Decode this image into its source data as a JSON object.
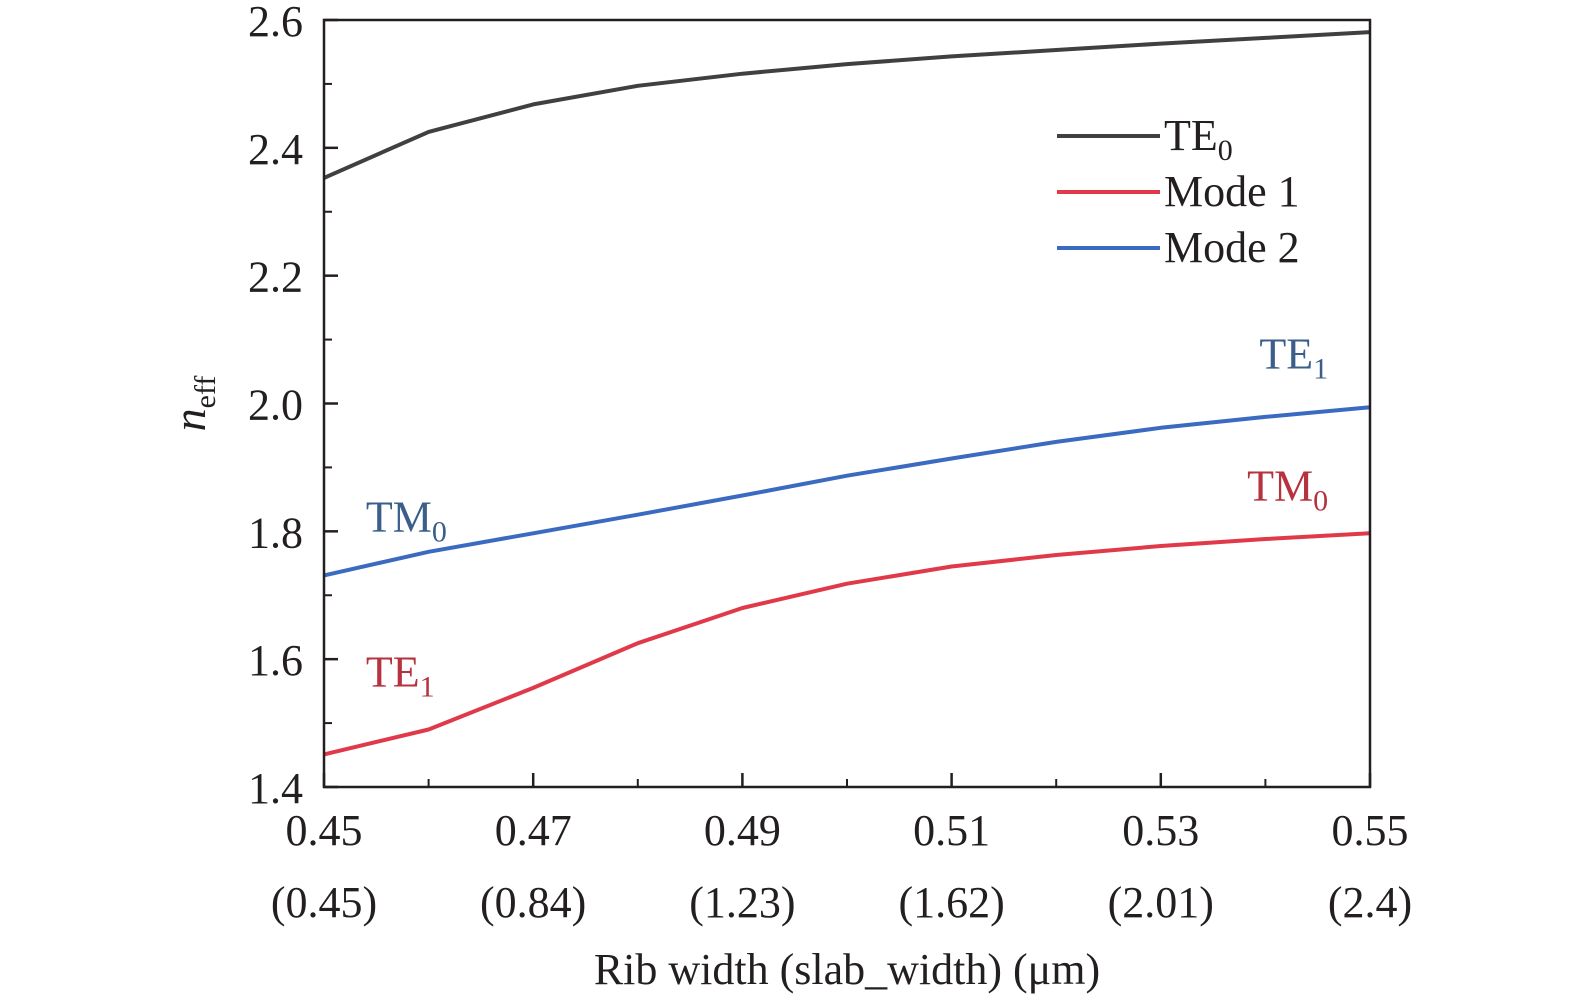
{
  "chart_data": {
    "type": "line",
    "title": "",
    "xlabel": "Rib width (slab_width) (μm)",
    "ylabel": {
      "main": "n",
      "sub": "eff"
    },
    "xlim": [
      0.45,
      0.55
    ],
    "ylim": [
      1.4,
      2.6
    ],
    "x_ticks": [
      {
        "value": 0.45,
        "label": "0.45",
        "label2": "(0.45)"
      },
      {
        "value": 0.47,
        "label": "0.47",
        "label2": "(0.84)"
      },
      {
        "value": 0.49,
        "label": "0.49",
        "label2": "(1.23)"
      },
      {
        "value": 0.51,
        "label": "0.51",
        "label2": "(1.62)"
      },
      {
        "value": 0.53,
        "label": "0.53",
        "label2": "(2.01)"
      },
      {
        "value": 0.55,
        "label": "0.55",
        "label2": "(2.4)"
      }
    ],
    "y_ticks": [
      {
        "value": 1.4,
        "label": "1.4"
      },
      {
        "value": 1.6,
        "label": "1.6"
      },
      {
        "value": 1.8,
        "label": "1.8"
      },
      {
        "value": 2.0,
        "label": "2.0"
      },
      {
        "value": 2.2,
        "label": "2.2"
      },
      {
        "value": 2.4,
        "label": "2.4"
      },
      {
        "value": 2.6,
        "label": "2.6"
      }
    ],
    "grid": false,
    "legend_position": "top-right",
    "series": [
      {
        "name": "TE",
        "name_sub": "0",
        "color": "#404040",
        "x": [
          0.45,
          0.46,
          0.47,
          0.48,
          0.49,
          0.5,
          0.51,
          0.52,
          0.53,
          0.54,
          0.55
        ],
        "y": [
          2.353,
          2.425,
          2.468,
          2.497,
          2.516,
          2.531,
          2.543,
          2.553,
          2.563,
          2.572,
          2.581
        ]
      },
      {
        "name": "Mode 1",
        "color": "#e03a4a",
        "x": [
          0.45,
          0.46,
          0.47,
          0.48,
          0.49,
          0.5,
          0.51,
          0.52,
          0.53,
          0.54,
          0.55
        ],
        "y": [
          1.451,
          1.49,
          1.555,
          1.625,
          1.68,
          1.718,
          1.745,
          1.763,
          1.777,
          1.788,
          1.797
        ]
      },
      {
        "name": "Mode 2",
        "color": "#3a6bc0",
        "x": [
          0.45,
          0.46,
          0.47,
          0.48,
          0.49,
          0.5,
          0.51,
          0.52,
          0.53,
          0.54,
          0.55
        ],
        "y": [
          1.731,
          1.768,
          1.797,
          1.826,
          1.856,
          1.887,
          1.914,
          1.94,
          1.962,
          1.979,
          1.994
        ]
      }
    ],
    "annotations": [
      {
        "text": "TM",
        "sub": "0",
        "color": "#3b5f8a",
        "x": 0.454,
        "y": 1.8
      },
      {
        "text": "TE",
        "sub": "1",
        "color": "#3b5f8a",
        "x": 0.546,
        "y": 2.055
      },
      {
        "text": "TM",
        "sub": "0",
        "color": "#b5323e",
        "x": 0.546,
        "y": 1.848
      },
      {
        "text": "TE",
        "sub": "1",
        "color": "#b5323e",
        "x": 0.454,
        "y": 1.557
      }
    ]
  }
}
